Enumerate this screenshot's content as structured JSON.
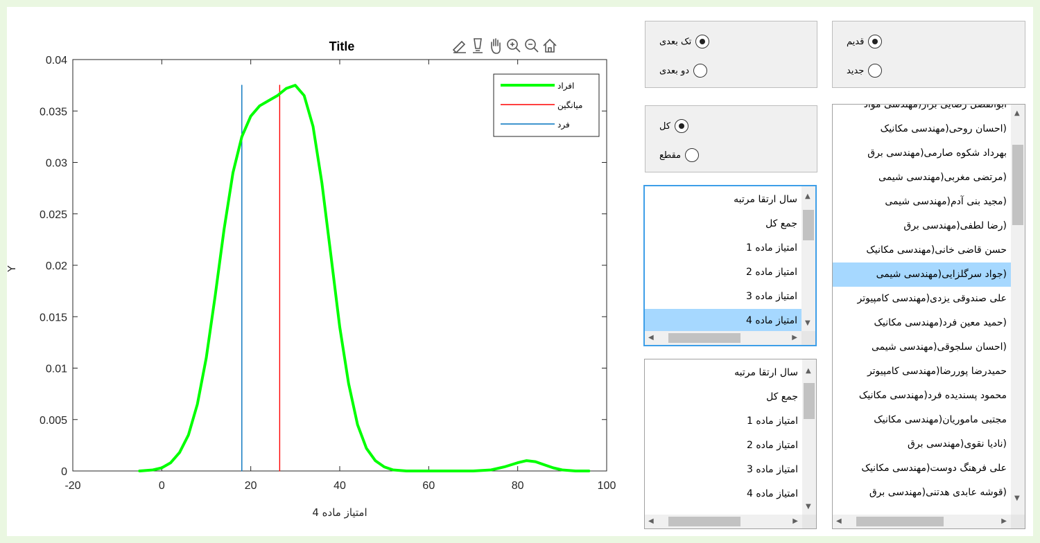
{
  "plot": {
    "title": "Title",
    "xlabel": "امتیاز ماده 4",
    "ylabel": "Y",
    "toolbar_icons": [
      "brush-icon",
      "data-cursor-icon",
      "pan-icon",
      "zoom-in-icon",
      "zoom-out-icon",
      "home-icon"
    ]
  },
  "chart_data": {
    "type": "line",
    "xlim": [
      -20,
      100
    ],
    "ylim": [
      0,
      0.04
    ],
    "x_ticks": [
      -20,
      0,
      20,
      40,
      60,
      80,
      100
    ],
    "y_ticks": [
      "0",
      "0.005",
      "0.01",
      "0.015",
      "0.02",
      "0.025",
      "0.03",
      "0.035",
      "0.04"
    ],
    "grid": false,
    "legend_position": "top-right",
    "series": [
      {
        "name": "افراد",
        "color": "#00ff00",
        "x": [
          -5,
          -2,
          0,
          2,
          4,
          6,
          8,
          10,
          12,
          14,
          16,
          18,
          20,
          22,
          24,
          26,
          28,
          30,
          32,
          34,
          36,
          38,
          40,
          42,
          44,
          46,
          48,
          50,
          52,
          55,
          58,
          62,
          66,
          70,
          74,
          77,
          80,
          82,
          84,
          86,
          88,
          90,
          93,
          96
        ],
        "y": [
          0,
          0.0001,
          0.0003,
          0.0008,
          0.0018,
          0.0035,
          0.0065,
          0.011,
          0.017,
          0.0235,
          0.029,
          0.0325,
          0.0345,
          0.0355,
          0.036,
          0.0365,
          0.0372,
          0.0375,
          0.0365,
          0.0335,
          0.028,
          0.021,
          0.014,
          0.0085,
          0.0045,
          0.0022,
          0.001,
          0.0004,
          0.0001,
          0,
          0,
          0,
          0,
          0,
          0.0001,
          0.0004,
          0.0008,
          0.001,
          0.0009,
          0.0006,
          0.0003,
          0.0001,
          0,
          0
        ]
      },
      {
        "name": "میانگین",
        "color": "#ff0000",
        "x": [
          26.5,
          26.5
        ],
        "y": [
          0,
          0.0375
        ]
      },
      {
        "name": "فرد",
        "color": "#0072bd",
        "x": [
          18,
          18
        ],
        "y": [
          0,
          0.0375
        ]
      }
    ]
  },
  "panels": {
    "dimension": {
      "options": [
        "تک بعدی",
        "دو بعدی"
      ],
      "selected": 0
    },
    "era": {
      "options": [
        "قدیم",
        "جدید"
      ],
      "selected": 0
    },
    "range": {
      "options": [
        "کل",
        "مقطع"
      ],
      "selected": 0
    }
  },
  "listbox_metrics_1": {
    "items": [
      "سال ارتقا مرتبه",
      "جمع کل",
      "امتیاز ماده 1",
      "امتیاز ماده 2",
      "امتیاز ماده 3",
      "امتیاز ماده 4"
    ],
    "selected": 5
  },
  "listbox_metrics_2": {
    "items": [
      "سال ارتقا مرتبه",
      "جمع کل",
      "امتیاز ماده 1",
      "امتیاز ماده 2",
      "امتیاز ماده 3",
      "امتیاز ماده 4"
    ],
    "selected": -1
  },
  "listbox_people": {
    "items": [
      "ابوالفضل رضایی بزاز(مهندسی مواد",
      "(احسان روحی(مهندسی مکانیک",
      "بهرداد شکوه صارمی(مهندسی برق",
      "(مرتضی مغربی(مهندسی شیمی",
      "(مجید بنی آدم(مهندسی شیمی",
      "(رضا لطفی(مهندسی برق",
      "حسن قاضی خانی(مهندسی مکانیک",
      "(جواد سرگلزایی(مهندسی شیمی",
      "علی صندوقی یزدی(مهندسی کامپیوتر",
      "(حمید معین فرد(مهندسی مکانیک",
      "(احسان سلجوقی(مهندسی شیمی",
      "حمیدرضا پوررضا(مهندسی کامپیوتر",
      "محمود پسندیده فرد(مهندسی مکانیک",
      "مجتبی ماموریان(مهندسی مکانیک",
      "(نادیا نقوی(مهندسی برق",
      "علی فرهنگ دوست(مهندسی مکانیک",
      "(قوشه عابدی هدتنی(مهندسی برق"
    ],
    "selected": 7
  }
}
